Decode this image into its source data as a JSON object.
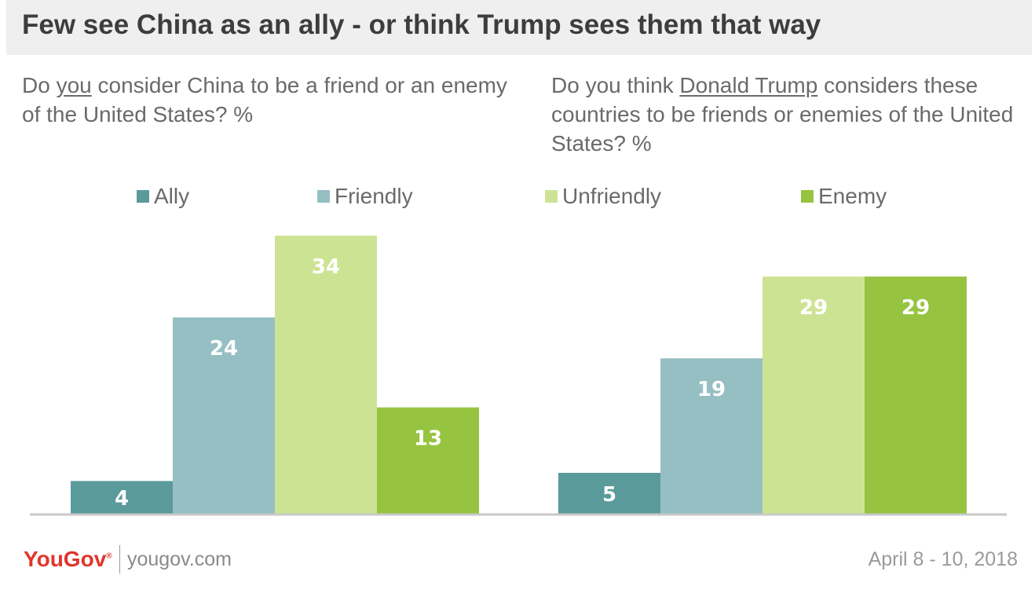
{
  "title": "Few see China as an ally - or think Trump sees them that way",
  "questions": {
    "left": {
      "pre": "Do ",
      "emph": "you",
      "post": " consider China to be a friend or an enemy of the United States? %"
    },
    "right": {
      "pre": "Do you think ",
      "emph": "Donald Trump",
      "post": " considers these countries to be friends or enemies of the United States? %"
    }
  },
  "legend": [
    {
      "label": "Ally",
      "color": "#5a9a9b"
    },
    {
      "label": "Friendly",
      "color": "#96bfc3"
    },
    {
      "label": "Unfriendly",
      "color": "#cde394"
    },
    {
      "label": "Enemy",
      "color": "#96c441"
    }
  ],
  "chart_data": [
    {
      "type": "bar",
      "categories": [
        "Ally",
        "Friendly",
        "Unfriendly",
        "Enemy"
      ],
      "values": [
        4,
        24,
        34,
        13
      ],
      "colors": [
        "#5a9a9b",
        "#96bfc3",
        "#cde394",
        "#96c441"
      ],
      "ylim": [
        0,
        34
      ],
      "grid": false,
      "legend_position": "top"
    },
    {
      "type": "bar",
      "categories": [
        "Ally",
        "Friendly",
        "Unfriendly",
        "Enemy"
      ],
      "values": [
        5,
        19,
        29,
        29
      ],
      "colors": [
        "#5a9a9b",
        "#96bfc3",
        "#cde394",
        "#96c441"
      ],
      "ylim": [
        0,
        34
      ],
      "grid": false,
      "legend_position": "top"
    }
  ],
  "footer": {
    "logo": "YouGov",
    "url": "yougov.com",
    "date": "April 8 - 10, 2018"
  }
}
